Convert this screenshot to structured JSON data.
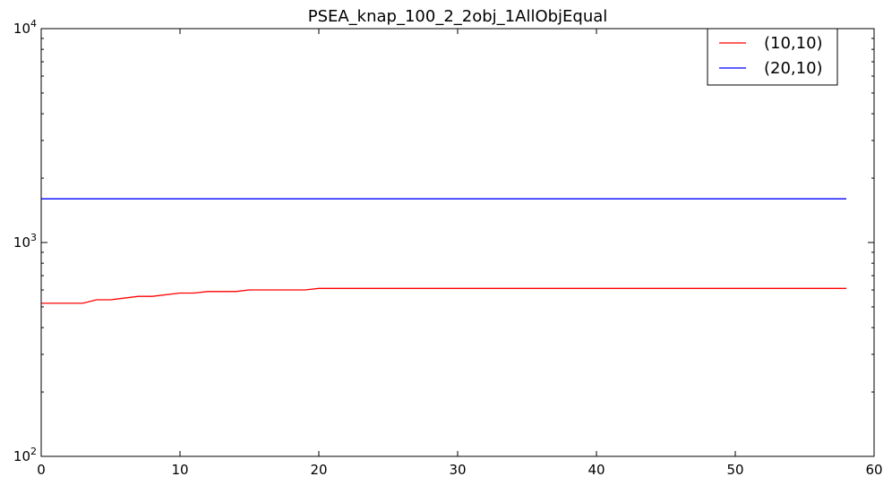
{
  "chart_data": {
    "type": "line",
    "title": "PSEA_knap_100_2_2obj_1AllObjEqual",
    "xlabel": "",
    "ylabel": "",
    "xlim": [
      0,
      60
    ],
    "ylim": [
      100,
      10000
    ],
    "yscale": "log",
    "grid": false,
    "legend_position": "top-right",
    "x_ticks": [
      {
        "value": 0,
        "label": "0"
      },
      {
        "value": 10,
        "label": "10"
      },
      {
        "value": 20,
        "label": "20"
      },
      {
        "value": 30,
        "label": "30"
      },
      {
        "value": 40,
        "label": "40"
      },
      {
        "value": 50,
        "label": "50"
      },
      {
        "value": 60,
        "label": "60"
      }
    ],
    "y_ticks": [
      {
        "value": 100,
        "base": "10",
        "exp": "2"
      },
      {
        "value": 1000,
        "base": "10",
        "exp": "3"
      },
      {
        "value": 10000,
        "base": "10",
        "exp": "4"
      }
    ],
    "series": [
      {
        "name": "(10,10)",
        "color": "#ff0000",
        "points": [
          [
            0,
            520
          ],
          [
            3,
            520
          ],
          [
            4,
            540
          ],
          [
            5,
            540
          ],
          [
            7,
            560
          ],
          [
            8,
            560
          ],
          [
            10,
            580
          ],
          [
            11,
            580
          ],
          [
            12,
            590
          ],
          [
            14,
            590
          ],
          [
            15,
            600
          ],
          [
            19,
            600
          ],
          [
            20,
            610
          ],
          [
            58,
            610
          ]
        ]
      },
      {
        "name": "(20,10)",
        "color": "#0000ff",
        "points": [
          [
            0,
            1600
          ],
          [
            58,
            1600
          ]
        ]
      }
    ]
  }
}
